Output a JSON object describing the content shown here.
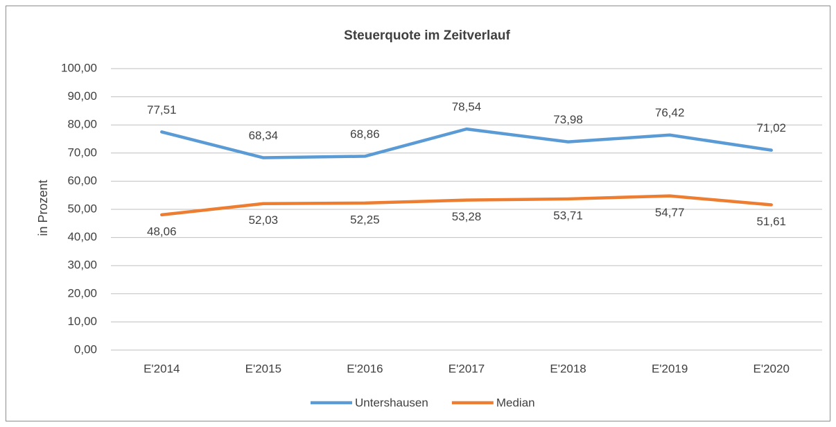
{
  "chart_data": {
    "type": "line",
    "title": "Steuerquote im Zeitverlauf",
    "y_label": "in Prozent",
    "categories": [
      "E'2014",
      "E'2015",
      "E'2016",
      "E'2017",
      "E'2018",
      "E'2019",
      "E'2020"
    ],
    "series": [
      {
        "name": "Untershausen",
        "color": "#5b9bd5",
        "values": [
          77.51,
          68.34,
          68.86,
          78.54,
          73.98,
          76.42,
          71.02
        ],
        "value_labels": [
          "77,51",
          "68,34",
          "68,86",
          "78,54",
          "73,98",
          "76,42",
          "71,02"
        ]
      },
      {
        "name": "Median",
        "color": "#ed7d31",
        "values": [
          48.06,
          52.03,
          52.25,
          53.28,
          53.71,
          54.77,
          51.61
        ],
        "value_labels": [
          "48,06",
          "52,03",
          "52,25",
          "53,28",
          "53,71",
          "54,77",
          "51,61"
        ]
      }
    ],
    "ylim": [
      0,
      100
    ],
    "yticks": [
      {
        "value": 0,
        "label": "0,00"
      },
      {
        "value": 10,
        "label": "10,00"
      },
      {
        "value": 20,
        "label": "20,00"
      },
      {
        "value": 30,
        "label": "30,00"
      },
      {
        "value": 40,
        "label": "40,00"
      },
      {
        "value": 50,
        "label": "50,00"
      },
      {
        "value": 60,
        "label": "60,00"
      },
      {
        "value": 70,
        "label": "70,00"
      },
      {
        "value": 80,
        "label": "80,00"
      },
      {
        "value": 90,
        "label": "90,00"
      },
      {
        "value": 100,
        "label": "100,00"
      }
    ],
    "grid": true,
    "legend": "bottom"
  }
}
